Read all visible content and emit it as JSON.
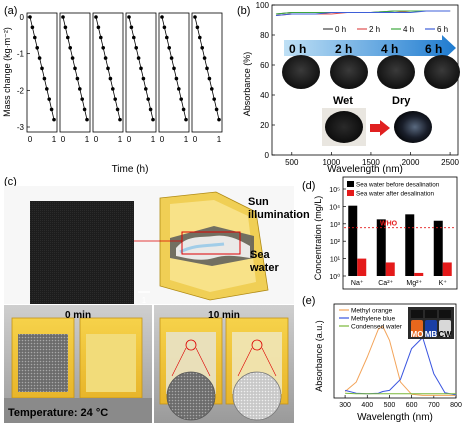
{
  "panels": {
    "a": {
      "label": "(a)",
      "ylabel": "Mass change (kg·m⁻²)",
      "xlabel": "Time (h)",
      "y_ticks": [
        "0",
        "-1",
        "-2",
        "-3"
      ],
      "x_ticks": [
        "0",
        "1"
      ],
      "cycle_count": 6,
      "cycles_x": [
        0,
        0.1,
        0.2,
        0.3,
        0.4,
        0.5,
        0.6,
        0.7,
        0.8,
        0.9,
        1.0
      ],
      "cycles_y": [
        0,
        -0.28,
        -0.56,
        -0.84,
        -1.12,
        -1.4,
        -1.68,
        -1.96,
        -2.24,
        -2.52,
        -2.8
      ]
    },
    "b": {
      "label": "(b)",
      "ylabel": "Absorbance (%)",
      "xlabel": "Wavelength (nm)",
      "y_ticks": [
        "0",
        "20",
        "40",
        "60",
        "80",
        "100"
      ],
      "x_ticks": [
        "500",
        "1000",
        "1500",
        "2000",
        "2500"
      ],
      "legend": [
        "0 h",
        "2 h",
        "4 h",
        "6 h"
      ],
      "series_colors": [
        "#444444",
        "#e05050",
        "#3ea83e",
        "#3e5fd8"
      ],
      "time_labels": [
        "0 h",
        "2 h",
        "4 h",
        "6 h"
      ],
      "wet_label": "Wet",
      "dry_label": "Dry"
    },
    "c": {
      "label": "(c)",
      "sun_label": "Sun\nillumination",
      "sea_label": "Sea\nwater",
      "scale_label": "1",
      "t0_label": "0 min",
      "t10_label": "10 min",
      "temperature": "Temperature: 24 °C"
    },
    "d": {
      "label": "(d)",
      "ylabel": "Concentration (mg/L)",
      "legend": [
        "Sea water before desalination",
        "Sea water after desalination"
      ],
      "colors": [
        "#000000",
        "#e41a1a"
      ],
      "who_label": "WHO",
      "y_ticks": [
        "10⁰",
        "10¹",
        "10²",
        "10³",
        "10⁴",
        "10⁵"
      ],
      "categories": [
        "Na⁺",
        "Ca²⁺",
        "Mg²⁺",
        "K⁺"
      ]
    },
    "e": {
      "label": "(e)",
      "ylabel": "Absorbance (a.u.)",
      "xlabel": "Wavelength (nm)",
      "x_ticks": [
        "300",
        "400",
        "500",
        "600",
        "700",
        "800"
      ],
      "legend": [
        "Methyl orange",
        "Methylene blue",
        "Condensed water"
      ],
      "colors": [
        "#f3a45a",
        "#3a55e0",
        "#7ab83a"
      ],
      "vial_labels": [
        "MO",
        "MB",
        "CW"
      ]
    }
  },
  "chart_data": [
    {
      "type": "line",
      "panel": "a",
      "xlabel": "Time (h)",
      "ylabel": "Mass change (kg·m⁻²)",
      "xlim": [
        0,
        1
      ],
      "ylim": [
        -3,
        0
      ],
      "series": [
        {
          "x": [
            0,
            0.1,
            0.2,
            0.3,
            0.4,
            0.5,
            0.6,
            0.7,
            0.8,
            0.9,
            1.0
          ],
          "y": [
            0,
            -0.28,
            -0.56,
            -0.84,
            -1.12,
            -1.4,
            -1.68,
            -1.96,
            -2.24,
            -2.52,
            -2.8
          ]
        }
      ]
    },
    {
      "type": "line",
      "panel": "b",
      "xlabel": "Wavelength (nm)",
      "ylabel": "Absorbance (%)",
      "xlim": [
        250,
        2600
      ],
      "ylim": [
        0,
        100
      ],
      "x": [
        300,
        500,
        800,
        1000,
        1200,
        1500,
        1800,
        2000,
        2200,
        2500
      ],
      "series": [
        {
          "name": "0 h",
          "values": [
            94,
            95,
            95,
            95,
            95,
            95,
            96,
            96,
            96,
            96
          ]
        },
        {
          "name": "2 h",
          "values": [
            93,
            94,
            94,
            94,
            95,
            95,
            95,
            96,
            96,
            96
          ]
        },
        {
          "name": "4 h",
          "values": [
            94,
            95,
            95,
            95,
            95,
            95,
            96,
            96,
            96,
            96
          ]
        },
        {
          "name": "6 h",
          "values": [
            93,
            94,
            94,
            95,
            95,
            95,
            95,
            95,
            96,
            96
          ]
        }
      ]
    },
    {
      "type": "bar",
      "panel": "d",
      "ylabel": "Concentration (mg/L)",
      "yscale": "log",
      "ylim": [
        1,
        100000
      ],
      "categories": [
        "Na⁺",
        "Ca²⁺",
        "Mg²⁺",
        "K⁺"
      ],
      "series": [
        {
          "name": "Sea water before desalination",
          "values": [
            11000,
            1800,
            3500,
            1500
          ]
        },
        {
          "name": "Sea water after desalination",
          "values": [
            10,
            6,
            1.5,
            6
          ]
        }
      ],
      "reference_line": {
        "label": "WHO",
        "value": 600
      }
    },
    {
      "type": "line",
      "panel": "e",
      "xlabel": "Wavelength (nm)",
      "ylabel": "Absorbance (a.u.)",
      "xlim": [
        250,
        800
      ],
      "ylim": [
        0,
        1.4
      ],
      "x": [
        300,
        350,
        400,
        450,
        470,
        500,
        550,
        600,
        650,
        700,
        750,
        800
      ],
      "series": [
        {
          "name": "Methyl orange",
          "values": [
            0.08,
            0.25,
            0.7,
            1.2,
            1.25,
            1.0,
            0.25,
            0.03,
            0.01,
            0.01,
            0.01,
            0.01
          ]
        },
        {
          "name": "Methylene blue",
          "values": [
            0.1,
            0.05,
            0.04,
            0.05,
            0.08,
            0.1,
            0.3,
            0.85,
            1.05,
            0.4,
            0.06,
            0.02
          ]
        },
        {
          "name": "Condensed water",
          "values": [
            0.05,
            0.04,
            0.04,
            0.04,
            0.04,
            0.04,
            0.04,
            0.04,
            0.04,
            0.04,
            0.04,
            0.04
          ]
        }
      ]
    }
  ]
}
